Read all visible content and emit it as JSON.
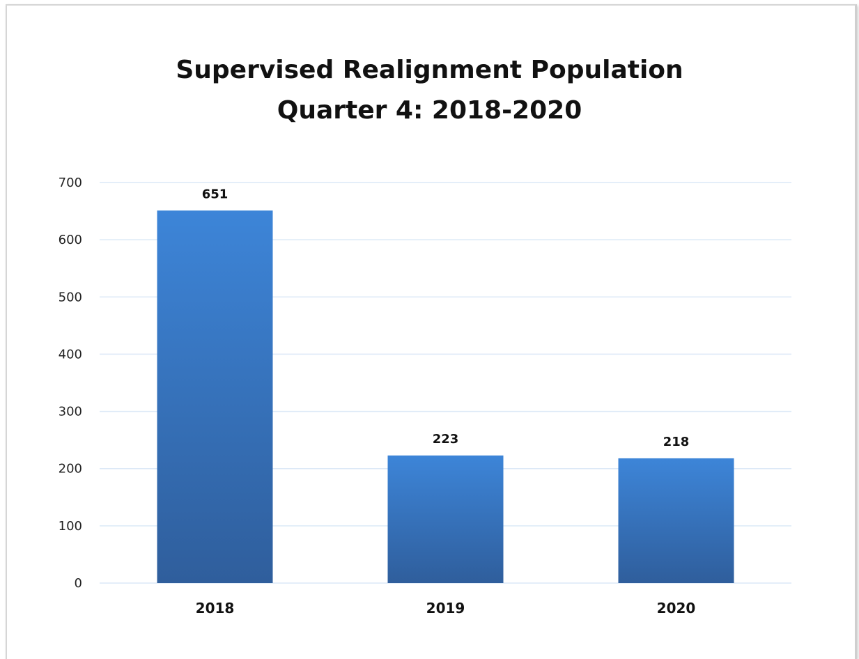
{
  "chart_data": {
    "type": "bar",
    "title_line1": "Supervised Realignment Population",
    "title_line2": "Quarter 4: 2018-2020",
    "categories": [
      "2018",
      "2019",
      "2020"
    ],
    "values": [
      651,
      223,
      218
    ],
    "data_labels": [
      "651",
      "223",
      "218"
    ],
    "ylim": [
      0,
      700
    ],
    "yticks": [
      0,
      100,
      200,
      300,
      400,
      500,
      600,
      700
    ],
    "grid": true,
    "legend": "none",
    "colors": {
      "bar_top": "#3d85d8",
      "bar_bottom": "#2f5e9c",
      "grid": "#dce9f7"
    }
  }
}
